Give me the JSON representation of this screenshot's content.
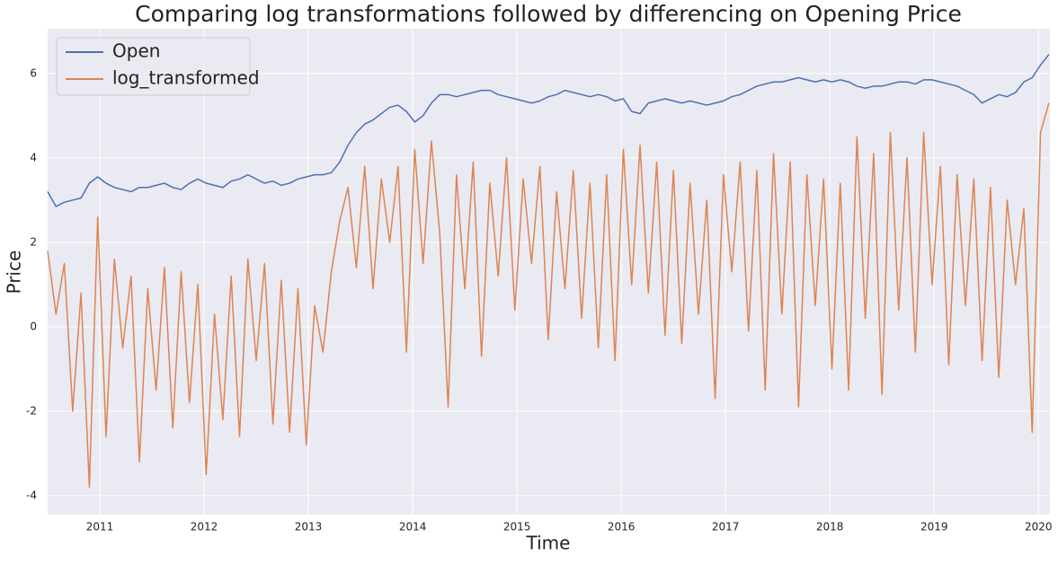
{
  "chart_data": {
    "type": "line",
    "title": "Comparing log transformations followed by differencing on Opening Price",
    "x_label": "Time",
    "y_label": "Price",
    "x": [
      2010.5,
      2010.58,
      2010.66,
      2010.74,
      2010.82,
      2010.9,
      2010.98,
      2011.06,
      2011.14,
      2011.22,
      2011.3,
      2011.38,
      2011.46,
      2011.54,
      2011.62,
      2011.7,
      2011.78,
      2011.86,
      2011.94,
      2012.02,
      2012.1,
      2012.18,
      2012.26,
      2012.34,
      2012.42,
      2012.5,
      2012.58,
      2012.66,
      2012.74,
      2012.82,
      2012.9,
      2012.98,
      2013.06,
      2013.14,
      2013.22,
      2013.3,
      2013.38,
      2013.46,
      2013.54,
      2013.62,
      2013.7,
      2013.78,
      2013.86,
      2013.94,
      2014.02,
      2014.1,
      2014.18,
      2014.26,
      2014.34,
      2014.42,
      2014.5,
      2014.58,
      2014.66,
      2014.74,
      2014.82,
      2014.9,
      2014.98,
      2015.06,
      2015.14,
      2015.22,
      2015.3,
      2015.38,
      2015.46,
      2015.54,
      2015.62,
      2015.7,
      2015.78,
      2015.86,
      2015.94,
      2016.02,
      2016.1,
      2016.18,
      2016.26,
      2016.34,
      2016.42,
      2016.5,
      2016.58,
      2016.66,
      2016.74,
      2016.82,
      2016.9,
      2016.98,
      2017.06,
      2017.14,
      2017.22,
      2017.3,
      2017.38,
      2017.46,
      2017.54,
      2017.62,
      2017.7,
      2017.78,
      2017.86,
      2017.94,
      2018.02,
      2018.1,
      2018.18,
      2018.26,
      2018.34,
      2018.42,
      2018.5,
      2018.58,
      2018.66,
      2018.74,
      2018.82,
      2018.9,
      2018.98,
      2019.06,
      2019.14,
      2019.22,
      2019.3,
      2019.38,
      2019.46,
      2019.54,
      2019.62,
      2019.7,
      2019.78,
      2019.86,
      2019.94,
      2020.02,
      2020.1
    ],
    "series": [
      {
        "name": "Open",
        "color": "#4c72b0",
        "values": [
          3.2,
          2.85,
          2.95,
          3.0,
          3.05,
          3.4,
          3.55,
          3.4,
          3.3,
          3.25,
          3.2,
          3.3,
          3.3,
          3.35,
          3.4,
          3.3,
          3.25,
          3.4,
          3.5,
          3.4,
          3.35,
          3.3,
          3.45,
          3.5,
          3.6,
          3.5,
          3.4,
          3.45,
          3.35,
          3.4,
          3.5,
          3.55,
          3.6,
          3.6,
          3.65,
          3.9,
          4.3,
          4.6,
          4.8,
          4.9,
          5.05,
          5.2,
          5.25,
          5.1,
          4.85,
          5.0,
          5.3,
          5.5,
          5.5,
          5.45,
          5.5,
          5.55,
          5.6,
          5.6,
          5.5,
          5.45,
          5.4,
          5.35,
          5.3,
          5.35,
          5.45,
          5.5,
          5.6,
          5.55,
          5.5,
          5.45,
          5.5,
          5.45,
          5.35,
          5.4,
          5.1,
          5.05,
          5.3,
          5.35,
          5.4,
          5.35,
          5.3,
          5.35,
          5.3,
          5.25,
          5.3,
          5.35,
          5.45,
          5.5,
          5.6,
          5.7,
          5.75,
          5.8,
          5.8,
          5.85,
          5.9,
          5.85,
          5.8,
          5.85,
          5.8,
          5.85,
          5.8,
          5.7,
          5.65,
          5.7,
          5.7,
          5.75,
          5.8,
          5.8,
          5.75,
          5.85,
          5.85,
          5.8,
          5.75,
          5.7,
          5.6,
          5.5,
          5.3,
          5.4,
          5.5,
          5.45,
          5.55,
          5.8,
          5.9,
          6.2,
          6.45
        ]
      },
      {
        "name": "log_transformed",
        "color": "#dd8452",
        "values": [
          1.8,
          0.3,
          1.5,
          -2.0,
          0.8,
          -3.8,
          2.6,
          -2.6,
          1.6,
          -0.5,
          1.2,
          -3.2,
          0.9,
          -1.5,
          1.4,
          -2.4,
          1.3,
          -1.8,
          1.0,
          -3.5,
          0.3,
          -2.2,
          1.2,
          -2.6,
          1.6,
          -0.8,
          1.5,
          -2.3,
          1.1,
          -2.5,
          0.9,
          -2.8,
          0.5,
          -0.6,
          1.3,
          2.5,
          3.3,
          1.4,
          3.8,
          0.9,
          3.5,
          2.0,
          3.8,
          -0.6,
          4.2,
          1.5,
          4.4,
          2.2,
          -1.9,
          3.6,
          0.9,
          3.9,
          -0.7,
          3.4,
          1.2,
          4.0,
          0.4,
          3.5,
          1.5,
          3.8,
          -0.3,
          3.2,
          0.9,
          3.7,
          0.2,
          3.4,
          -0.5,
          3.6,
          -0.8,
          4.2,
          1.0,
          4.3,
          0.8,
          3.9,
          -0.2,
          3.7,
          -0.4,
          3.4,
          0.3,
          3.0,
          -1.7,
          3.6,
          1.3,
          3.9,
          -0.1,
          3.7,
          -1.5,
          4.1,
          0.3,
          3.9,
          -1.9,
          3.6,
          0.5,
          3.5,
          -1.0,
          3.4,
          -1.5,
          4.5,
          0.2,
          4.1,
          -1.6,
          4.6,
          0.4,
          4.0,
          -0.6,
          4.6,
          1.0,
          3.8,
          -0.9,
          3.6,
          0.5,
          3.5,
          -0.8,
          3.3,
          -1.2,
          3.0,
          1.0,
          2.8,
          -2.5,
          4.6,
          5.3
        ]
      }
    ],
    "xlim": [
      2010.5,
      2020.11
    ],
    "xticks": [
      2011,
      2012,
      2013,
      2014,
      2015,
      2016,
      2017,
      2018,
      2019,
      2020
    ],
    "ylim": [
      -4.45,
      7.06
    ],
    "yticks": [
      -4,
      -2,
      0,
      2,
      4,
      6
    ],
    "grid": true,
    "legend": "upper left"
  }
}
